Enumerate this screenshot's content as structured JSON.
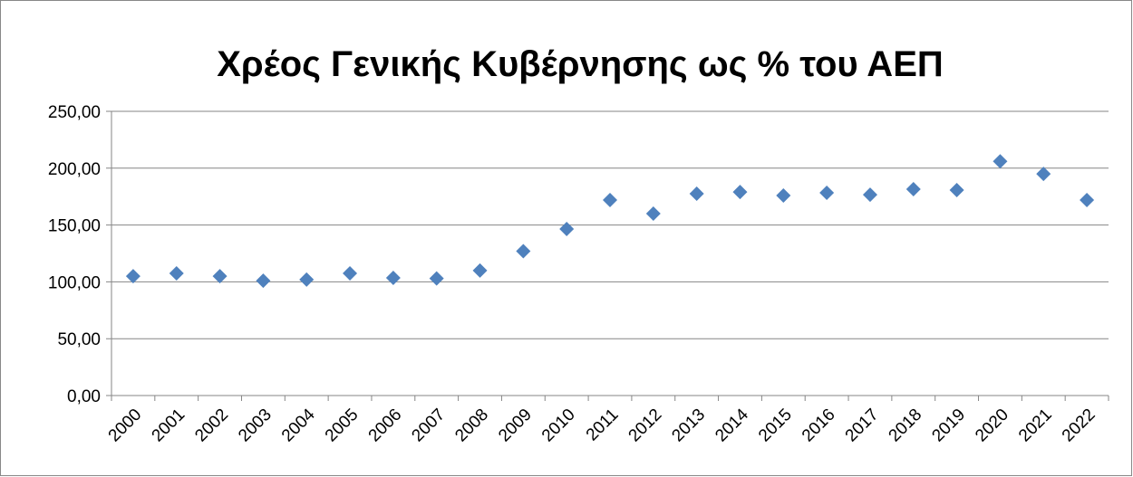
{
  "chart_data": {
    "type": "line",
    "title": "Χρέος Γενικής Κυβέρνησης ως % του ΑΕΠ",
    "categories": [
      "2000",
      "2001",
      "2002",
      "2003",
      "2004",
      "2005",
      "2006",
      "2007",
      "2008",
      "2009",
      "2010",
      "2011",
      "2012",
      "2013",
      "2014",
      "2015",
      "2016",
      "2017",
      "2018",
      "2019",
      "2020",
      "2021",
      "2022"
    ],
    "series": [
      {
        "color": "#4f81bd",
        "values": [
          105,
          107.5,
          105,
          101,
          102,
          107.5,
          103.5,
          103,
          110,
          127,
          146.5,
          172,
          160,
          177.5,
          179,
          176,
          178.3,
          176.7,
          181.5,
          180.7,
          206,
          195,
          172
        ]
      }
    ],
    "ylim": [
      0,
      250
    ],
    "yticks": [
      {
        "value": 0,
        "label": "0,00"
      },
      {
        "value": 50,
        "label": "50,00"
      },
      {
        "value": 100,
        "label": "100,00"
      },
      {
        "value": 150,
        "label": "150,00"
      },
      {
        "value": 200,
        "label": "200,00"
      },
      {
        "value": 250,
        "label": "250,00"
      }
    ],
    "grid": true
  }
}
